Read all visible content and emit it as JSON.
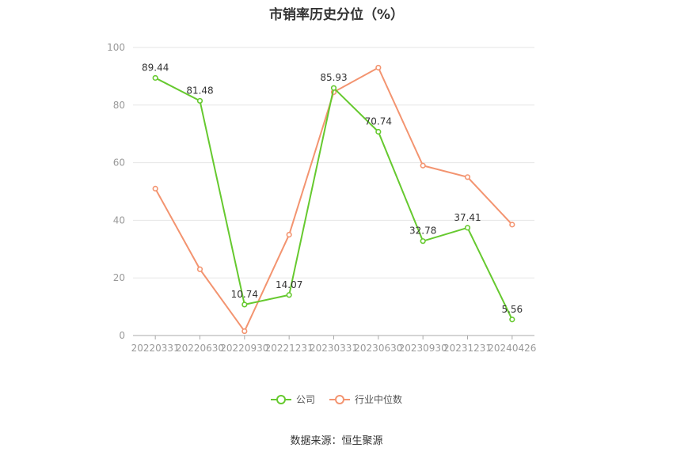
{
  "title": "市销率历史分位（%）",
  "source": "数据来源：恒生聚源",
  "colors": {
    "company": "#66c92f",
    "industry": "#f39470",
    "grid": "#e6e6e6",
    "axis": "#999999"
  },
  "chart_data": {
    "type": "line",
    "title": "市销率历史分位（%）",
    "categories": [
      "20220331",
      "20220630",
      "20220930",
      "20221231",
      "20230331",
      "20230630",
      "20230930",
      "20231231",
      "20240426"
    ],
    "ylim": [
      0,
      100
    ],
    "yticks": [
      0,
      20,
      40,
      60,
      80,
      100
    ],
    "grid": true,
    "legend_position": "bottom",
    "series": [
      {
        "name": "公司",
        "values": [
          89.44,
          81.48,
          10.74,
          14.07,
          85.93,
          70.74,
          32.78,
          37.41,
          5.56
        ],
        "labels": [
          "89.44",
          "81.48",
          "10.74",
          "14.07",
          "85.93",
          "70.74",
          "32.78",
          "37.41",
          "5.56"
        ]
      },
      {
        "name": "行业中位数",
        "values": [
          51,
          23,
          1.5,
          35,
          84.5,
          93,
          59,
          55,
          38.5
        ]
      }
    ]
  },
  "legend": [
    {
      "label": "公司",
      "color": "#66c92f"
    },
    {
      "label": "行业中位数",
      "color": "#f39470"
    }
  ]
}
